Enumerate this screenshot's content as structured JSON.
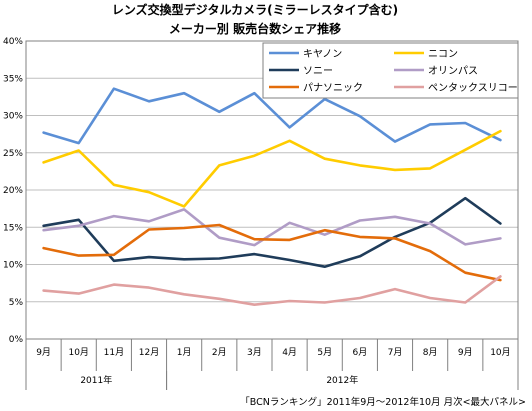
{
  "chart_data": {
    "type": "line",
    "title": "レンズ交換型デジタルカメラ(ミラーレスタイプ含む)",
    "subtitle": "メーカー別 販売台数シェア推移",
    "categories": [
      "9月",
      "10月",
      "11月",
      "12月",
      "1月",
      "2月",
      "3月",
      "4月",
      "5月",
      "6月",
      "7月",
      "8月",
      "9月",
      "10月"
    ],
    "year_groups": [
      {
        "label": "2011年",
        "start": 0,
        "end": 3
      },
      {
        "label": "2012年",
        "start": 4,
        "end": 13
      }
    ],
    "y_ticks": [
      "0%",
      "5%",
      "10%",
      "15%",
      "20%",
      "25%",
      "30%",
      "35%",
      "40%"
    ],
    "ylim": [
      0,
      40
    ],
    "y_unit": "%",
    "grid": true,
    "legend_position": "top-right",
    "series": [
      {
        "name": "キヤノン",
        "color": "#5b8fd6",
        "values": [
          27.7,
          26.3,
          33.6,
          31.9,
          33.0,
          30.5,
          33.0,
          28.4,
          32.2,
          29.9,
          26.5,
          28.8,
          29.0,
          26.7
        ]
      },
      {
        "name": "ニコン",
        "color": "#ffcc00",
        "values": [
          23.7,
          25.3,
          20.7,
          19.7,
          17.8,
          23.3,
          24.6,
          26.6,
          24.2,
          23.3,
          22.7,
          22.9,
          25.4,
          27.9
        ]
      },
      {
        "name": "ソニー",
        "color": "#1f3c5a",
        "values": [
          15.2,
          16.0,
          10.5,
          11.0,
          10.7,
          10.8,
          11.4,
          10.6,
          9.7,
          11.1,
          13.7,
          15.6,
          18.9,
          15.5
        ]
      },
      {
        "name": "オリンパス",
        "color": "#b09cc6",
        "values": [
          14.6,
          15.2,
          16.5,
          15.8,
          17.4,
          13.6,
          12.6,
          15.6,
          14.0,
          15.9,
          16.4,
          15.5,
          12.7,
          13.5
        ]
      },
      {
        "name": "パナソニック",
        "color": "#e36c0a",
        "values": [
          12.2,
          11.2,
          11.3,
          14.7,
          14.9,
          15.3,
          13.4,
          13.3,
          14.6,
          13.7,
          13.5,
          11.8,
          8.9,
          7.9
        ]
      },
      {
        "name": "ペンタックスリコー",
        "color": "#e0a0a0",
        "values": [
          6.5,
          6.1,
          7.3,
          6.9,
          6.0,
          5.4,
          4.6,
          5.1,
          4.9,
          5.5,
          6.7,
          5.5,
          4.9,
          8.4
        ]
      }
    ]
  },
  "source_note": "「BCNランキング」2011年9月～2012年10月 月次<最大パネル>"
}
